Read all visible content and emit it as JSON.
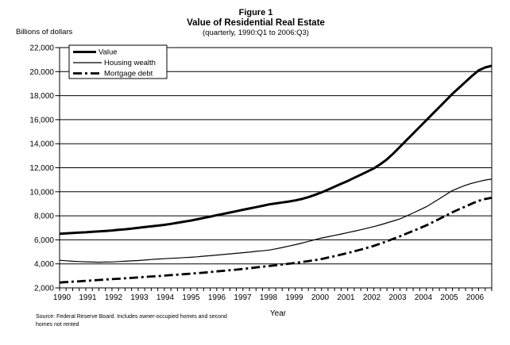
{
  "figure": {
    "title_line1": "Figure 1",
    "title_line2": "Value of Residential Real Estate",
    "title_line3": "(quarterly, 1990:Q1 to 2006:Q3)",
    "y_axis_unit_label": "Billions of dollars",
    "x_axis_label": "Year",
    "source_note_line1": "Source: Federal Reserve Board.  Includes owner-occupied homes and second",
    "source_note_line2": "homes not rented"
  },
  "chart_data": {
    "type": "line",
    "title": "Figure 1",
    "subtitle": "Value of Residential Real Estate",
    "caption": "(quarterly, 1990:Q1 to 2006:Q3)",
    "xlabel": "Year",
    "ylabel": "Billions of dollars",
    "ylim": [
      2000,
      22000
    ],
    "y_ticks": [
      2000,
      4000,
      6000,
      8000,
      10000,
      12000,
      14000,
      16000,
      18000,
      20000,
      22000
    ],
    "grid": "horizontal",
    "legend_position": "top-left-inside",
    "x_start": "1990:Q1",
    "x_end": "2006:Q3",
    "x_frequency": "quarterly",
    "x_year_labels": [
      "1990",
      "1991",
      "1992",
      "1993",
      "1994",
      "1995",
      "1996",
      "1997",
      "1998",
      "1999",
      "2000",
      "2001",
      "2002",
      "2003",
      "2004",
      "2005",
      "2006"
    ],
    "line_color": "#000000",
    "series": [
      {
        "name": "Value",
        "dash": "solid",
        "stroke_width": 3,
        "values": [
          6500,
          6540,
          6570,
          6600,
          6630,
          6670,
          6700,
          6740,
          6780,
          6830,
          6880,
          6940,
          7000,
          7060,
          7120,
          7180,
          7250,
          7330,
          7420,
          7510,
          7600,
          7710,
          7820,
          7930,
          8050,
          8160,
          8270,
          8380,
          8500,
          8610,
          8720,
          8830,
          8950,
          9030,
          9110,
          9190,
          9280,
          9400,
          9550,
          9740,
          9950,
          10180,
          10420,
          10660,
          10900,
          11160,
          11420,
          11680,
          11950,
          12300,
          12700,
          13200,
          13750,
          14300,
          14850,
          15400,
          15950,
          16500,
          17050,
          17600,
          18150,
          18650,
          19150,
          19650,
          20100,
          20350,
          20480
        ]
      },
      {
        "name": "Housing wealth",
        "dash": "solid",
        "stroke_width": 1.2,
        "values": [
          4300,
          4260,
          4220,
          4190,
          4170,
          4150,
          4140,
          4150,
          4160,
          4190,
          4220,
          4250,
          4280,
          4320,
          4360,
          4400,
          4430,
          4460,
          4490,
          4520,
          4550,
          4590,
          4640,
          4680,
          4730,
          4780,
          4830,
          4880,
          4930,
          4980,
          5040,
          5090,
          5150,
          5250,
          5360,
          5480,
          5600,
          5730,
          5870,
          6010,
          6150,
          6260,
          6370,
          6480,
          6600,
          6720,
          6840,
          6970,
          7100,
          7250,
          7410,
          7580,
          7750,
          7990,
          8240,
          8490,
          8750,
          9080,
          9420,
          9760,
          10100,
          10330,
          10540,
          10710,
          10850,
          10980,
          11050
        ]
      },
      {
        "name": "Mortgage debt",
        "dash": "dash-dot",
        "stroke_width": 2.8,
        "values": [
          2450,
          2480,
          2520,
          2550,
          2590,
          2620,
          2660,
          2690,
          2730,
          2760,
          2800,
          2830,
          2870,
          2910,
          2950,
          2980,
          3020,
          3060,
          3100,
          3140,
          3180,
          3230,
          3270,
          3320,
          3370,
          3420,
          3470,
          3520,
          3580,
          3640,
          3700,
          3760,
          3820,
          3880,
          3950,
          4010,
          4080,
          4150,
          4230,
          4310,
          4400,
          4520,
          4640,
          4770,
          4900,
          5040,
          5190,
          5340,
          5500,
          5690,
          5890,
          6090,
          6300,
          6520,
          6740,
          6970,
          7200,
          7470,
          7740,
          8020,
          8300,
          8540,
          8780,
          9020,
          9250,
          9400,
          9500
        ]
      }
    ]
  },
  "colors": {
    "foreground": "#000000",
    "background": "#ffffff"
  }
}
